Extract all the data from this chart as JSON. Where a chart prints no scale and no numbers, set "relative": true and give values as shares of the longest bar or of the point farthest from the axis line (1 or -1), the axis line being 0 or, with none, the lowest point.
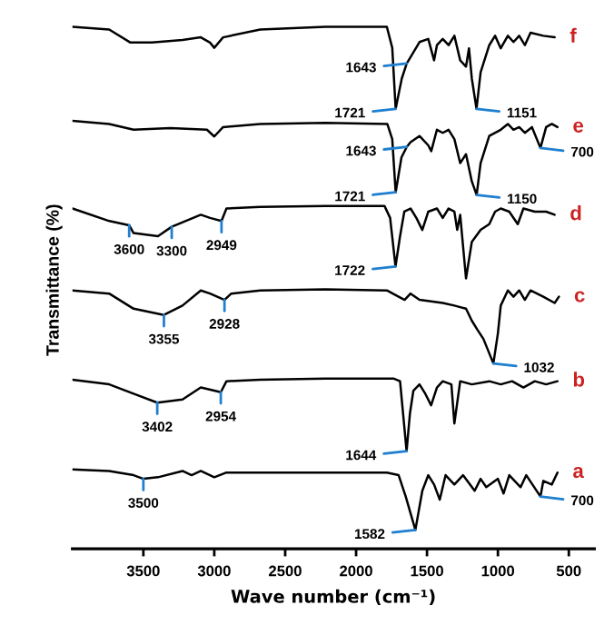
{
  "chart_data": {
    "type": "line",
    "relative": true,
    "xlabel": "Wave number (cm⁻¹)",
    "ylabel": "Transmittance (%)",
    "xlim": [
      4000,
      320
    ],
    "xticks": [
      3500,
      3000,
      2500,
      2000,
      1500,
      1000,
      500
    ],
    "legend": false,
    "grid": false,
    "line_style": "solid",
    "marker": "none",
    "series": [
      {
        "name": "a",
        "color": "#000000",
        "x": [
          4000,
          3741,
          3569,
          3500,
          3397,
          3224,
          3160,
          3095,
          3000,
          2914,
          2676,
          2217,
          1783,
          1700,
          1650,
          1582,
          1533,
          1491,
          1450,
          1410,
          1369,
          1307,
          1246,
          1164,
          1122,
          1082,
          1000,
          960,
          920,
          840,
          800,
          700,
          680,
          620,
          580
        ],
        "values": [
          0.152,
          0.149,
          0.141,
          0.134,
          0.137,
          0.149,
          0.141,
          0.149,
          0.137,
          0.146,
          0.146,
          0.146,
          0.146,
          0.141,
          0.1,
          0.036,
          0.111,
          0.141,
          0.123,
          0.094,
          0.141,
          0.123,
          0.141,
          0.111,
          0.134,
          0.118,
          0.134,
          0.106,
          0.141,
          0.118,
          0.141,
          0.1,
          0.13,
          0.123,
          0.146
        ]
      },
      {
        "name": "b",
        "color": "#000000",
        "x": [
          4000,
          3741,
          3569,
          3402,
          3224,
          3095,
          3000,
          2954,
          2914,
          2676,
          2217,
          1733,
          1690,
          1644,
          1620,
          1596,
          1553,
          1512,
          1471,
          1430,
          1389,
          1328,
          1307,
          1266,
          1184,
          1061,
          980,
          900,
          820,
          740,
          660,
          580
        ],
        "values": [
          0.324,
          0.315,
          0.297,
          0.28,
          0.286,
          0.309,
          0.303,
          0.3,
          0.321,
          0.324,
          0.326,
          0.326,
          0.321,
          0.187,
          0.26,
          0.303,
          0.315,
          0.297,
          0.275,
          0.309,
          0.321,
          0.315,
          0.24,
          0.321,
          0.315,
          0.321,
          0.315,
          0.321,
          0.309,
          0.321,
          0.315,
          0.321
        ]
      },
      {
        "name": "c",
        "color": "#000000",
        "x": [
          4000,
          3741,
          3569,
          3355,
          3224,
          3095,
          3030,
          2928,
          2880,
          2676,
          2217,
          1783,
          1700,
          1658,
          1616,
          1553,
          1389,
          1307,
          1225,
          1184,
          1143,
          1102,
          1032,
          1000,
          980,
          930,
          890,
          850,
          810,
          770,
          680,
          600,
          570
        ],
        "values": [
          0.495,
          0.489,
          0.46,
          0.448,
          0.466,
          0.495,
          0.489,
          0.477,
          0.489,
          0.495,
          0.497,
          0.495,
          0.483,
          0.477,
          0.489,
          0.477,
          0.471,
          0.466,
          0.46,
          0.437,
          0.419,
          0.402,
          0.355,
          0.413,
          0.466,
          0.495,
          0.483,
          0.495,
          0.477,
          0.495,
          0.483,
          0.471,
          0.483
        ]
      },
      {
        "name": "d",
        "color": "#000000",
        "x": [
          4000,
          3740,
          3600,
          3569,
          3397,
          3300,
          3095,
          3030,
          2949,
          2914,
          2676,
          2217,
          1800,
          1760,
          1722,
          1690,
          1660,
          1616,
          1575,
          1533,
          1491,
          1430,
          1389,
          1348,
          1307,
          1287,
          1266,
          1225,
          1184,
          1122,
          1061,
          1020,
          980,
          920,
          860,
          820,
          740,
          660,
          600
        ],
        "values": [
          0.652,
          0.628,
          0.62,
          0.605,
          0.599,
          0.617,
          0.64,
          0.634,
          0.628,
          0.652,
          0.655,
          0.657,
          0.657,
          0.634,
          0.541,
          0.599,
          0.646,
          0.652,
          0.634,
          0.611,
          0.646,
          0.652,
          0.634,
          0.652,
          0.646,
          0.611,
          0.64,
          0.518,
          0.588,
          0.611,
          0.622,
          0.646,
          0.652,
          0.646,
          0.622,
          0.652,
          0.646,
          0.646,
          0.64
        ]
      },
      {
        "name": "e",
        "color": "#000000",
        "x": [
          4000,
          3741,
          3569,
          3310,
          3052,
          3000,
          2938,
          2676,
          2217,
          1780,
          1745,
          1721,
          1680,
          1643,
          1616,
          1553,
          1491,
          1470,
          1430,
          1389,
          1348,
          1307,
          1266,
          1225,
          1184,
          1150,
          1122,
          1061,
          980,
          930,
          890,
          850,
          810,
          760,
          700,
          660,
          620,
          580
        ],
        "values": [
          0.82,
          0.814,
          0.803,
          0.806,
          0.803,
          0.79,
          0.808,
          0.814,
          0.816,
          0.814,
          0.785,
          0.683,
          0.75,
          0.77,
          0.779,
          0.791,
          0.773,
          0.762,
          0.803,
          0.797,
          0.803,
          0.785,
          0.739,
          0.756,
          0.704,
          0.678,
          0.739,
          0.791,
          0.803,
          0.814,
          0.803,
          0.808,
          0.797,
          0.808,
          0.768,
          0.808,
          0.814,
          0.808
        ]
      },
      {
        "name": "f",
        "color": "#000000",
        "x": [
          4000,
          3741,
          3591,
          3440,
          3224,
          3095,
          3030,
          3000,
          2938,
          2676,
          2217,
          1783,
          1745,
          1721,
          1678,
          1643,
          1616,
          1553,
          1491,
          1450,
          1430,
          1389,
          1348,
          1307,
          1266,
          1225,
          1204,
          1184,
          1151,
          1122,
          1061,
          1020,
          980,
          930,
          890,
          850,
          810,
          770,
          680,
          600
        ],
        "values": [
          1.0,
          0.995,
          0.97,
          0.97,
          0.975,
          0.98,
          0.97,
          0.96,
          0.98,
          0.995,
          1.0,
          1.0,
          0.96,
          0.843,
          0.901,
          0.93,
          0.942,
          0.971,
          0.977,
          0.936,
          0.965,
          0.977,
          0.965,
          0.983,
          0.936,
          0.924,
          0.959,
          0.901,
          0.843,
          0.913,
          0.965,
          0.983,
          0.959,
          0.983,
          0.971,
          0.983,
          0.965,
          0.989,
          0.983,
          0.98
        ]
      }
    ],
    "annotations": [
      {
        "text": "1721",
        "x": 1721,
        "y": 0.843
      },
      {
        "text": "1643",
        "x": 1643,
        "y": 0.93
      },
      {
        "text": "1151",
        "x": 1151,
        "y": 0.843
      },
      {
        "text": "1721",
        "x": 1721,
        "y": 0.683
      },
      {
        "text": "1643",
        "x": 1643,
        "y": 0.77
      },
      {
        "text": "700",
        "x": 700,
        "y": 0.768
      },
      {
        "text": "1150",
        "x": 1150,
        "y": 0.678
      },
      {
        "text": "3600",
        "x": 3600,
        "y": 0.62
      },
      {
        "text": "3300",
        "x": 3300,
        "y": 0.617
      },
      {
        "text": "2949",
        "x": 2949,
        "y": 0.628
      },
      {
        "text": "1722",
        "x": 1722,
        "y": 0.541
      },
      {
        "text": "3355",
        "x": 3355,
        "y": 0.448
      },
      {
        "text": "2928",
        "x": 2928,
        "y": 0.477
      },
      {
        "text": "1032",
        "x": 1032,
        "y": 0.355
      },
      {
        "text": "3402",
        "x": 3402,
        "y": 0.28
      },
      {
        "text": "2954",
        "x": 2954,
        "y": 0.3
      },
      {
        "text": "1644",
        "x": 1644,
        "y": 0.187
      },
      {
        "text": "3500",
        "x": 3500,
        "y": 0.134
      },
      {
        "text": "1582",
        "x": 1582,
        "y": 0.036
      },
      {
        "text": "700",
        "x": 700,
        "y": 0.1
      }
    ]
  }
}
